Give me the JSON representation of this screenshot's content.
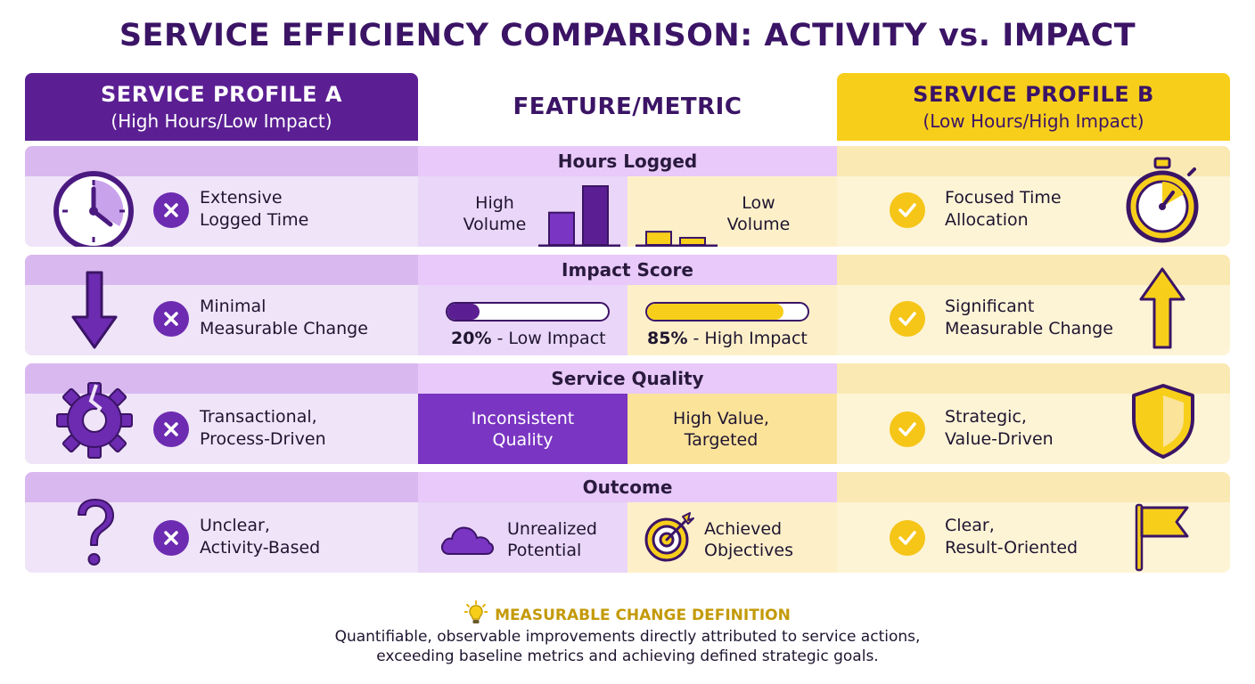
{
  "title": "SERVICE EFFICIENCY COMPARISON: ACTIVITY vs. IMPACT",
  "headers": {
    "profile_a": {
      "title": "SERVICE PROFILE A",
      "subtitle": "(High Hours/Low Impact)"
    },
    "metric": {
      "title": "FEATURE/METRIC"
    },
    "profile_b": {
      "title": "SERVICE PROFILE B",
      "subtitle": "(Low Hours/High Impact)"
    }
  },
  "colors": {
    "purple": "#5b1f93",
    "yellow": "#f7cf1b",
    "title": "#3b1466"
  },
  "rows": [
    {
      "metric": "Hours Logged",
      "a_icon": "clock-icon",
      "a_text": [
        "Extensive",
        "Logged Time"
      ],
      "mid_left": [
        "High",
        "Volume"
      ],
      "mid_right": [
        "Low",
        "Volume"
      ],
      "b_text": [
        "Focused Time",
        "Allocation"
      ],
      "b_icon": "stopwatch-icon",
      "bars_high": [
        0.55,
        1.0
      ],
      "bars_low": [
        0.5,
        0.27
      ]
    },
    {
      "metric": "Impact Score",
      "a_icon": "arrow-down-icon",
      "a_text": [
        "Minimal",
        "Measurable Change"
      ],
      "low_impact": {
        "percent": "20%",
        "label": " - Low Impact",
        "value": 0.2
      },
      "high_impact": {
        "percent": "85%",
        "label": " - High Impact",
        "value": 0.85
      },
      "b_text": [
        "Significant",
        "Measurable Change"
      ],
      "b_icon": "arrow-up-icon"
    },
    {
      "metric": "Service Quality",
      "a_icon": "broken-gear-icon",
      "a_text": [
        "Transactional,",
        "Process-Driven"
      ],
      "mid_left": [
        "Inconsistent",
        "Quality"
      ],
      "mid_right": [
        "High Value,",
        "Targeted"
      ],
      "b_text": [
        "Strategic,",
        "Value-Driven"
      ],
      "b_icon": "shield-icon"
    },
    {
      "metric": "Outcome",
      "a_icon": "question-mark-icon",
      "a_text": [
        "Unclear,",
        "Activity-Based"
      ],
      "mid_left": [
        "Unrealized",
        "Potential"
      ],
      "mid_right": [
        "Achieved",
        "Objectives"
      ],
      "b_text": [
        "Clear,",
        "Result-Oriented"
      ],
      "b_icon": "flag-icon"
    }
  ],
  "definition": {
    "icon": "lightbulb-icon",
    "title": "MEASURABLE CHANGE DEFINITION",
    "line1": "Quantifiable, observable improvements directly attributed to service actions,",
    "line2": "exceeding baseline metrics and achieving defined strategic goals."
  }
}
